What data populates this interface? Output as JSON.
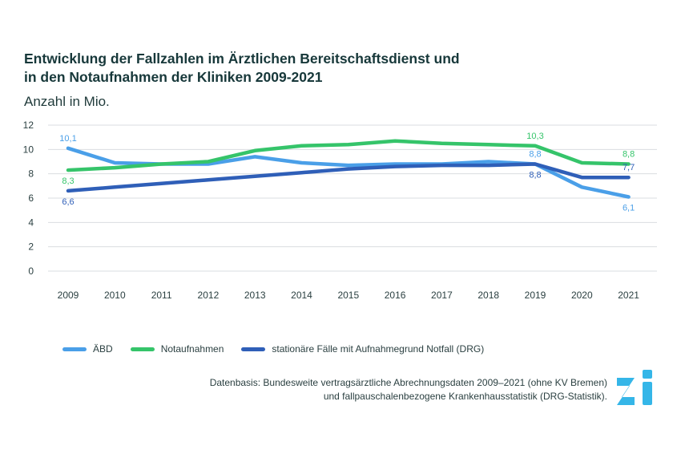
{
  "title_line1": "Entwicklung der Fallzahlen im Ärztlichen Bereitschaftsdienst und",
  "title_line2": "in den Notaufnahmen der Kliniken 2009-2021",
  "subtitle": "Anzahl in Mio.",
  "source_line1": "Datenbasis: Bundesweite vertragsärztliche Abrechnungsdaten 2009–2021 (ohne KV Bremen)",
  "source_line2": "und fallpauschalenbezogene Krankenhausstatistik (DRG-Statistik).",
  "logo_text": "Zi",
  "colors": {
    "abd": "#4a9fe8",
    "notaufnahmen": "#35c46a",
    "stationaer": "#2f5fb8",
    "logo": "#35b6e8"
  },
  "chart_data": {
    "type": "line",
    "categories": [
      "2009",
      "2010",
      "2011",
      "2012",
      "2013",
      "2014",
      "2015",
      "2016",
      "2017",
      "2018",
      "2019",
      "2020",
      "2021"
    ],
    "ylim": [
      0,
      12
    ],
    "yticks": [
      "0",
      "2",
      "4",
      "6",
      "8",
      "10",
      "12"
    ],
    "grid": true,
    "legend": "bottom-left",
    "series": [
      {
        "name": "ÄBD",
        "color": "#4a9fe8",
        "values": [
          10.1,
          8.9,
          8.8,
          8.8,
          9.4,
          8.9,
          8.7,
          8.8,
          8.8,
          9.0,
          8.8,
          6.9,
          6.1
        ],
        "labels": [
          {
            "index": 0,
            "text": "10,1",
            "pos": "above"
          },
          {
            "index": 10,
            "text": "8,8",
            "pos": "above"
          },
          {
            "index": 12,
            "text": "6,1",
            "pos": "below"
          }
        ]
      },
      {
        "name": "Notaufnahmen",
        "color": "#35c46a",
        "values": [
          8.3,
          8.5,
          8.8,
          9.0,
          9.9,
          10.3,
          10.4,
          10.7,
          10.5,
          10.4,
          10.3,
          8.9,
          8.8
        ],
        "labels": [
          {
            "index": 0,
            "text": "8,3",
            "pos": "below"
          },
          {
            "index": 10,
            "text": "10,3",
            "pos": "above"
          },
          {
            "index": 12,
            "text": "8,8",
            "pos": "above"
          }
        ]
      },
      {
        "name": "stationäre Fälle mit Aufnahmegrund Notfall (DRG)",
        "color": "#2f5fb8",
        "values": [
          6.6,
          6.9,
          7.2,
          7.5,
          7.8,
          8.1,
          8.4,
          8.6,
          8.7,
          8.7,
          8.8,
          7.7,
          7.7
        ],
        "labels": [
          {
            "index": 0,
            "text": "6,6",
            "pos": "below"
          },
          {
            "index": 10,
            "text": "8,8",
            "pos": "below"
          },
          {
            "index": 12,
            "text": "7,7",
            "pos": "above"
          }
        ]
      }
    ]
  }
}
